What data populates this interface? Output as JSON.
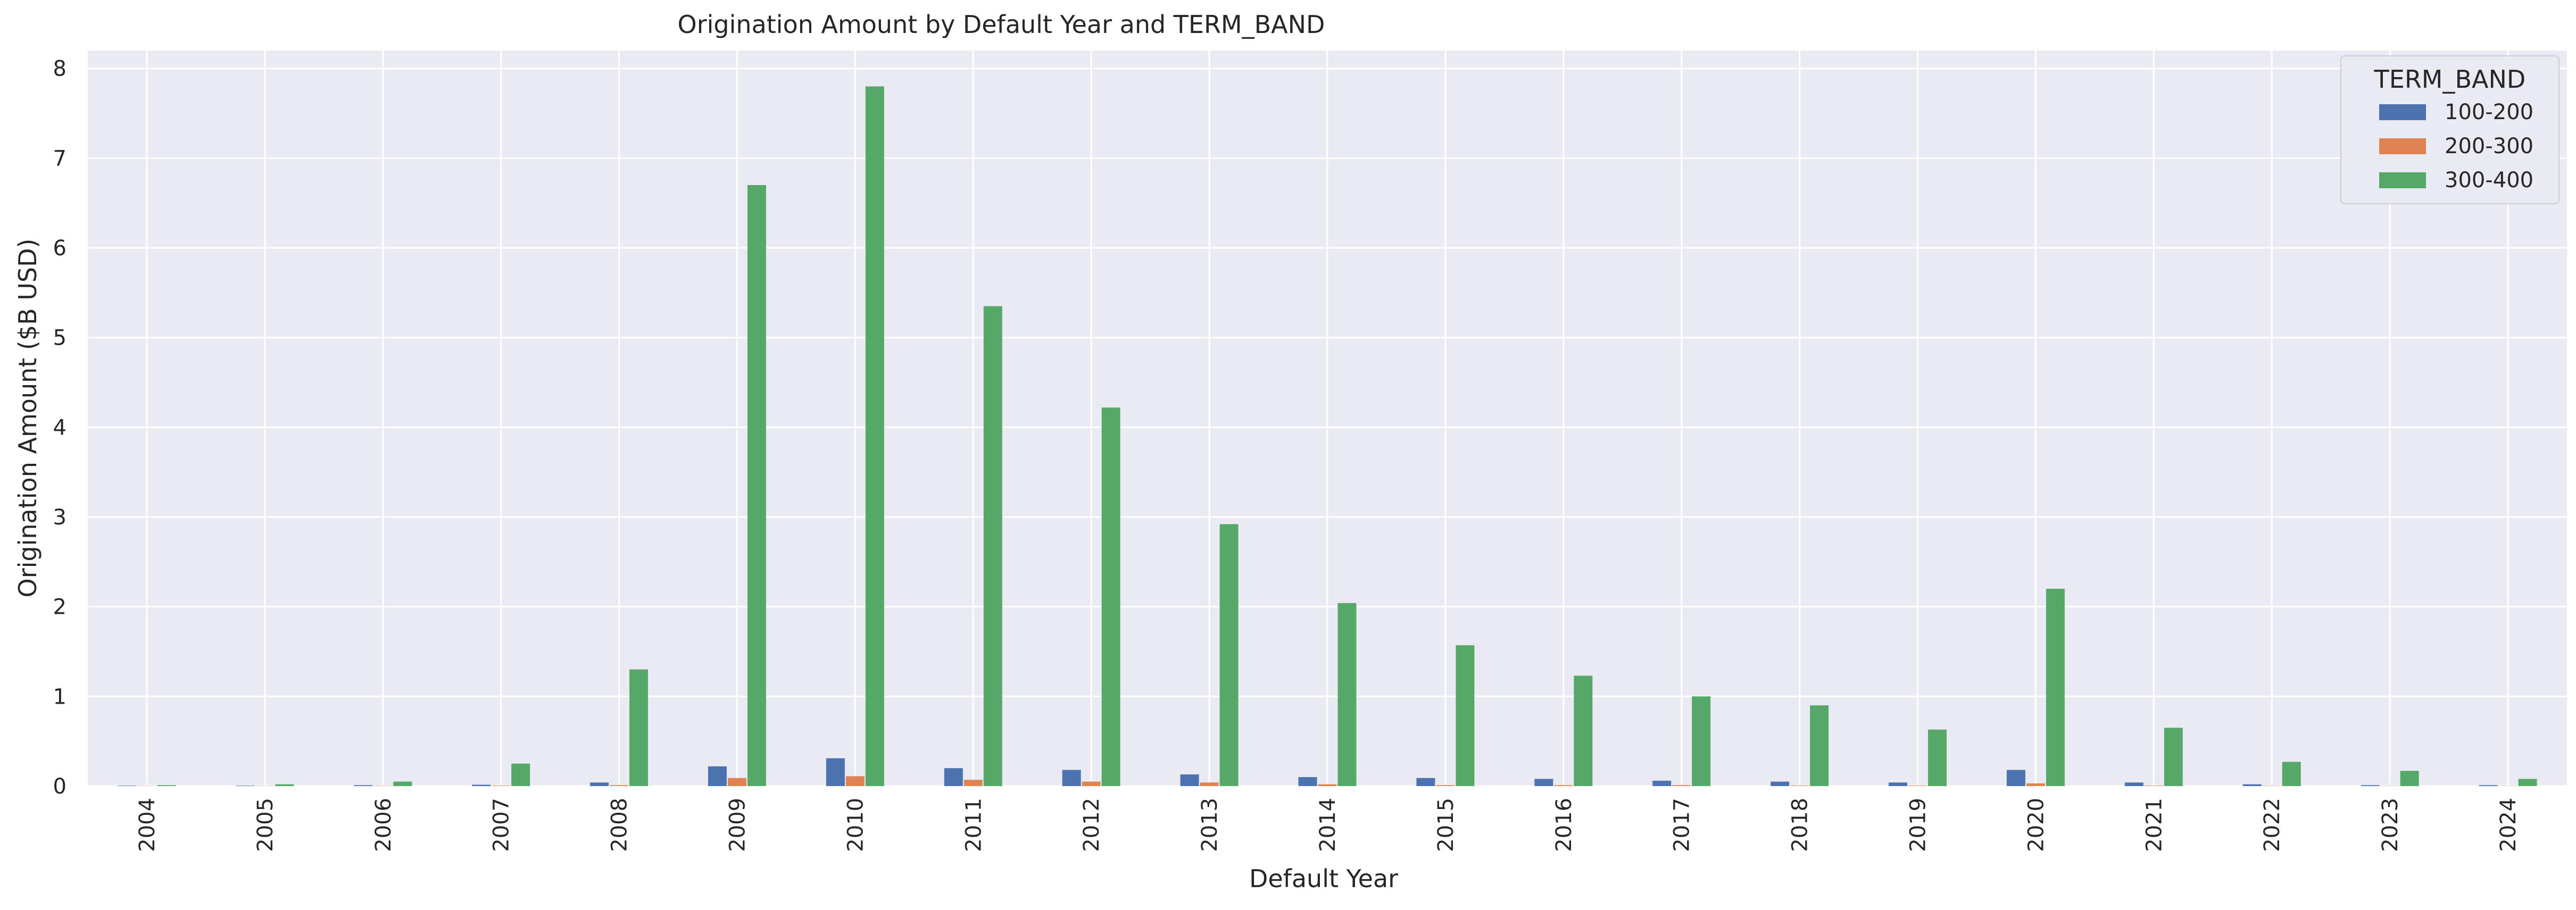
{
  "chart_data": {
    "type": "bar",
    "title": "Origination Amount by Default Year and TERM_BAND",
    "xlabel": "Default Year",
    "ylabel": "Origination Amount ($B USD)",
    "ylim": [
      0,
      8.2
    ],
    "yticks": [
      0,
      1,
      2,
      3,
      4,
      5,
      6,
      7,
      8
    ],
    "grid": true,
    "legend_title": "TERM_BAND",
    "legend_position": "top-right",
    "categories": [
      "2004",
      "2005",
      "2006",
      "2007",
      "2008",
      "2009",
      "2010",
      "2011",
      "2012",
      "2013",
      "2014",
      "2015",
      "2016",
      "2017",
      "2018",
      "2019",
      "2020",
      "2021",
      "2022",
      "2023",
      "2024"
    ],
    "series": [
      {
        "name": "100-200",
        "color": "#4c72b0",
        "values": [
          0.005,
          0.005,
          0.01,
          0.015,
          0.04,
          0.22,
          0.31,
          0.2,
          0.18,
          0.13,
          0.1,
          0.09,
          0.08,
          0.06,
          0.05,
          0.04,
          0.18,
          0.04,
          0.02,
          0.01,
          0.01
        ]
      },
      {
        "name": "200-300",
        "color": "#dd8452",
        "values": [
          0.002,
          0.002,
          0.003,
          0.005,
          0.01,
          0.09,
          0.11,
          0.07,
          0.05,
          0.04,
          0.02,
          0.01,
          0.01,
          0.01,
          0.005,
          0.005,
          0.03,
          0.005,
          0.003,
          0.002,
          0.002
        ]
      },
      {
        "name": "300-400",
        "color": "#55a868",
        "values": [
          0.01,
          0.02,
          0.05,
          0.25,
          1.3,
          6.7,
          7.8,
          5.35,
          4.22,
          2.92,
          2.04,
          1.57,
          1.23,
          1.0,
          0.9,
          0.63,
          2.2,
          0.65,
          0.27,
          0.17,
          0.08
        ]
      }
    ]
  }
}
